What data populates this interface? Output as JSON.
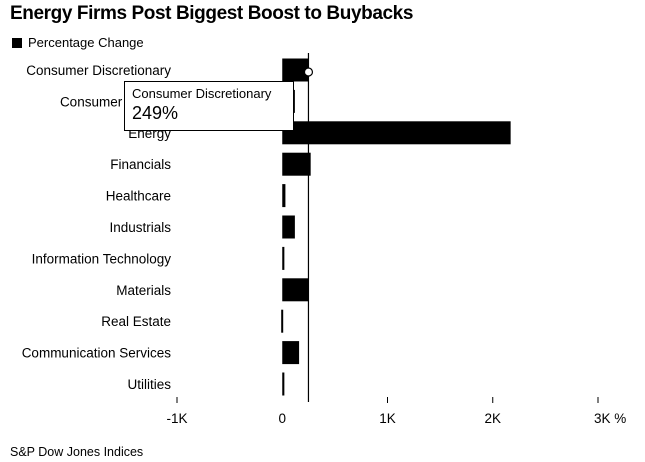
{
  "title": "Energy Firms Post Biggest Boost to Buybacks",
  "legend": {
    "label": "Percentage Change"
  },
  "source": "S&P Dow Jones Indices",
  "tooltip": {
    "label": "Consumer Discretionary",
    "value": "249%"
  },
  "chart_data": {
    "type": "bar",
    "orientation": "horizontal",
    "title": "Energy Firms Post Biggest Boost to Buybacks",
    "categories": [
      "Consumer Discretionary",
      "Consumer Staples",
      "Energy",
      "Financials",
      "Healthcare",
      "Industrials",
      "Information Technology",
      "Materials",
      "Real Estate",
      "Communication Services",
      "Utilities"
    ],
    "series": [
      {
        "name": "Percentage Change",
        "values": [
          249,
          120,
          2170,
          270,
          30,
          120,
          20,
          250,
          -10,
          160,
          20
        ]
      }
    ],
    "xlim": [
      -1000,
      3000
    ],
    "xticks": [
      -1000,
      0,
      1000,
      2000,
      3000
    ],
    "xtick_labels": [
      "-1K",
      "0",
      "1K",
      "2K",
      "3K"
    ],
    "x_unit": "%",
    "highlight_value_line": 249,
    "bar_color": "#000000",
    "grid": false,
    "legend_position": "top-left"
  }
}
